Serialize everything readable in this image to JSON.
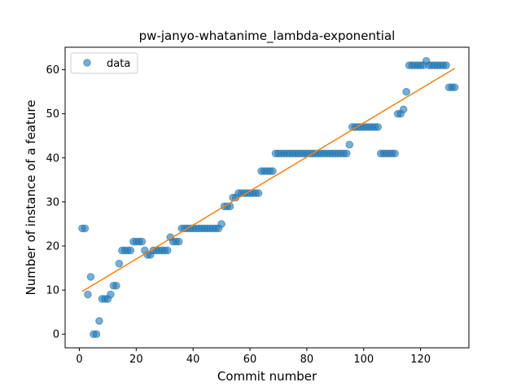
{
  "chart_data": {
    "type": "scatter",
    "title": "pw-janyo-whatanime_lambda-exponential",
    "xlabel": "Commit number",
    "ylabel": "Number of instance of a feature",
    "xlim": [
      -5,
      137
    ],
    "ylim": [
      -3.1,
      65.1
    ],
    "xticks": [
      0,
      20,
      40,
      60,
      80,
      100,
      120
    ],
    "yticks": [
      0,
      10,
      20,
      30,
      40,
      50,
      60
    ],
    "legend": {
      "position": "top-left",
      "entries": [
        "data"
      ]
    },
    "grid": false,
    "colors": {
      "data": "#1f77b4",
      "fit": "#ff7f0e"
    },
    "series": [
      {
        "name": "data",
        "kind": "scatter",
        "x": [
          1,
          2,
          3,
          4,
          5,
          6,
          7,
          8,
          9,
          10,
          11,
          12,
          13,
          14,
          15,
          16,
          17,
          18,
          19,
          20,
          21,
          22,
          23,
          24,
          25,
          26,
          27,
          28,
          29,
          30,
          31,
          32,
          33,
          34,
          35,
          36,
          37,
          38,
          39,
          40,
          41,
          42,
          43,
          44,
          45,
          46,
          47,
          48,
          49,
          50,
          51,
          52,
          53,
          54,
          55,
          56,
          57,
          58,
          59,
          60,
          61,
          62,
          63,
          64,
          65,
          66,
          67,
          68,
          69,
          70,
          71,
          72,
          73,
          74,
          75,
          76,
          77,
          78,
          79,
          80,
          81,
          82,
          83,
          84,
          85,
          86,
          87,
          88,
          89,
          90,
          91,
          92,
          93,
          94,
          95,
          96,
          97,
          98,
          99,
          100,
          101,
          102,
          103,
          104,
          105,
          106,
          107,
          108,
          109,
          110,
          111,
          112,
          113,
          114,
          115,
          116,
          117,
          118,
          119,
          120,
          121,
          122,
          123,
          124,
          125,
          126,
          127,
          128,
          129,
          130,
          131,
          132
        ],
        "y": [
          24,
          24,
          9,
          13,
          0,
          0,
          3,
          8,
          8,
          8,
          9,
          11,
          11,
          16,
          19,
          19,
          19,
          19,
          21,
          21,
          21,
          21,
          19,
          18,
          18,
          19,
          19,
          19,
          19,
          19,
          19,
          22,
          21,
          21,
          21,
          24,
          24,
          24,
          24,
          24,
          24,
          24,
          24,
          24,
          24,
          24,
          24,
          24,
          24,
          25,
          29,
          29,
          29,
          31,
          31,
          32,
          32,
          32,
          32,
          32,
          32,
          32,
          32,
          37,
          37,
          37,
          37,
          37,
          41,
          41,
          41,
          41,
          41,
          41,
          41,
          41,
          41,
          41,
          41,
          41,
          41,
          41,
          41,
          41,
          41,
          41,
          41,
          41,
          41,
          41,
          41,
          41,
          41,
          41,
          43,
          47,
          47,
          47,
          47,
          47,
          47,
          47,
          47,
          47,
          47,
          41,
          41,
          41,
          41,
          41,
          41,
          50,
          50,
          51,
          55,
          61,
          61,
          61,
          61,
          61,
          61,
          62,
          61,
          61,
          61,
          61,
          61,
          61,
          61,
          56,
          56,
          56
        ]
      },
      {
        "name": "",
        "kind": "line",
        "x": [
          1,
          132
        ],
        "y": [
          9.7,
          60.3
        ]
      }
    ]
  }
}
